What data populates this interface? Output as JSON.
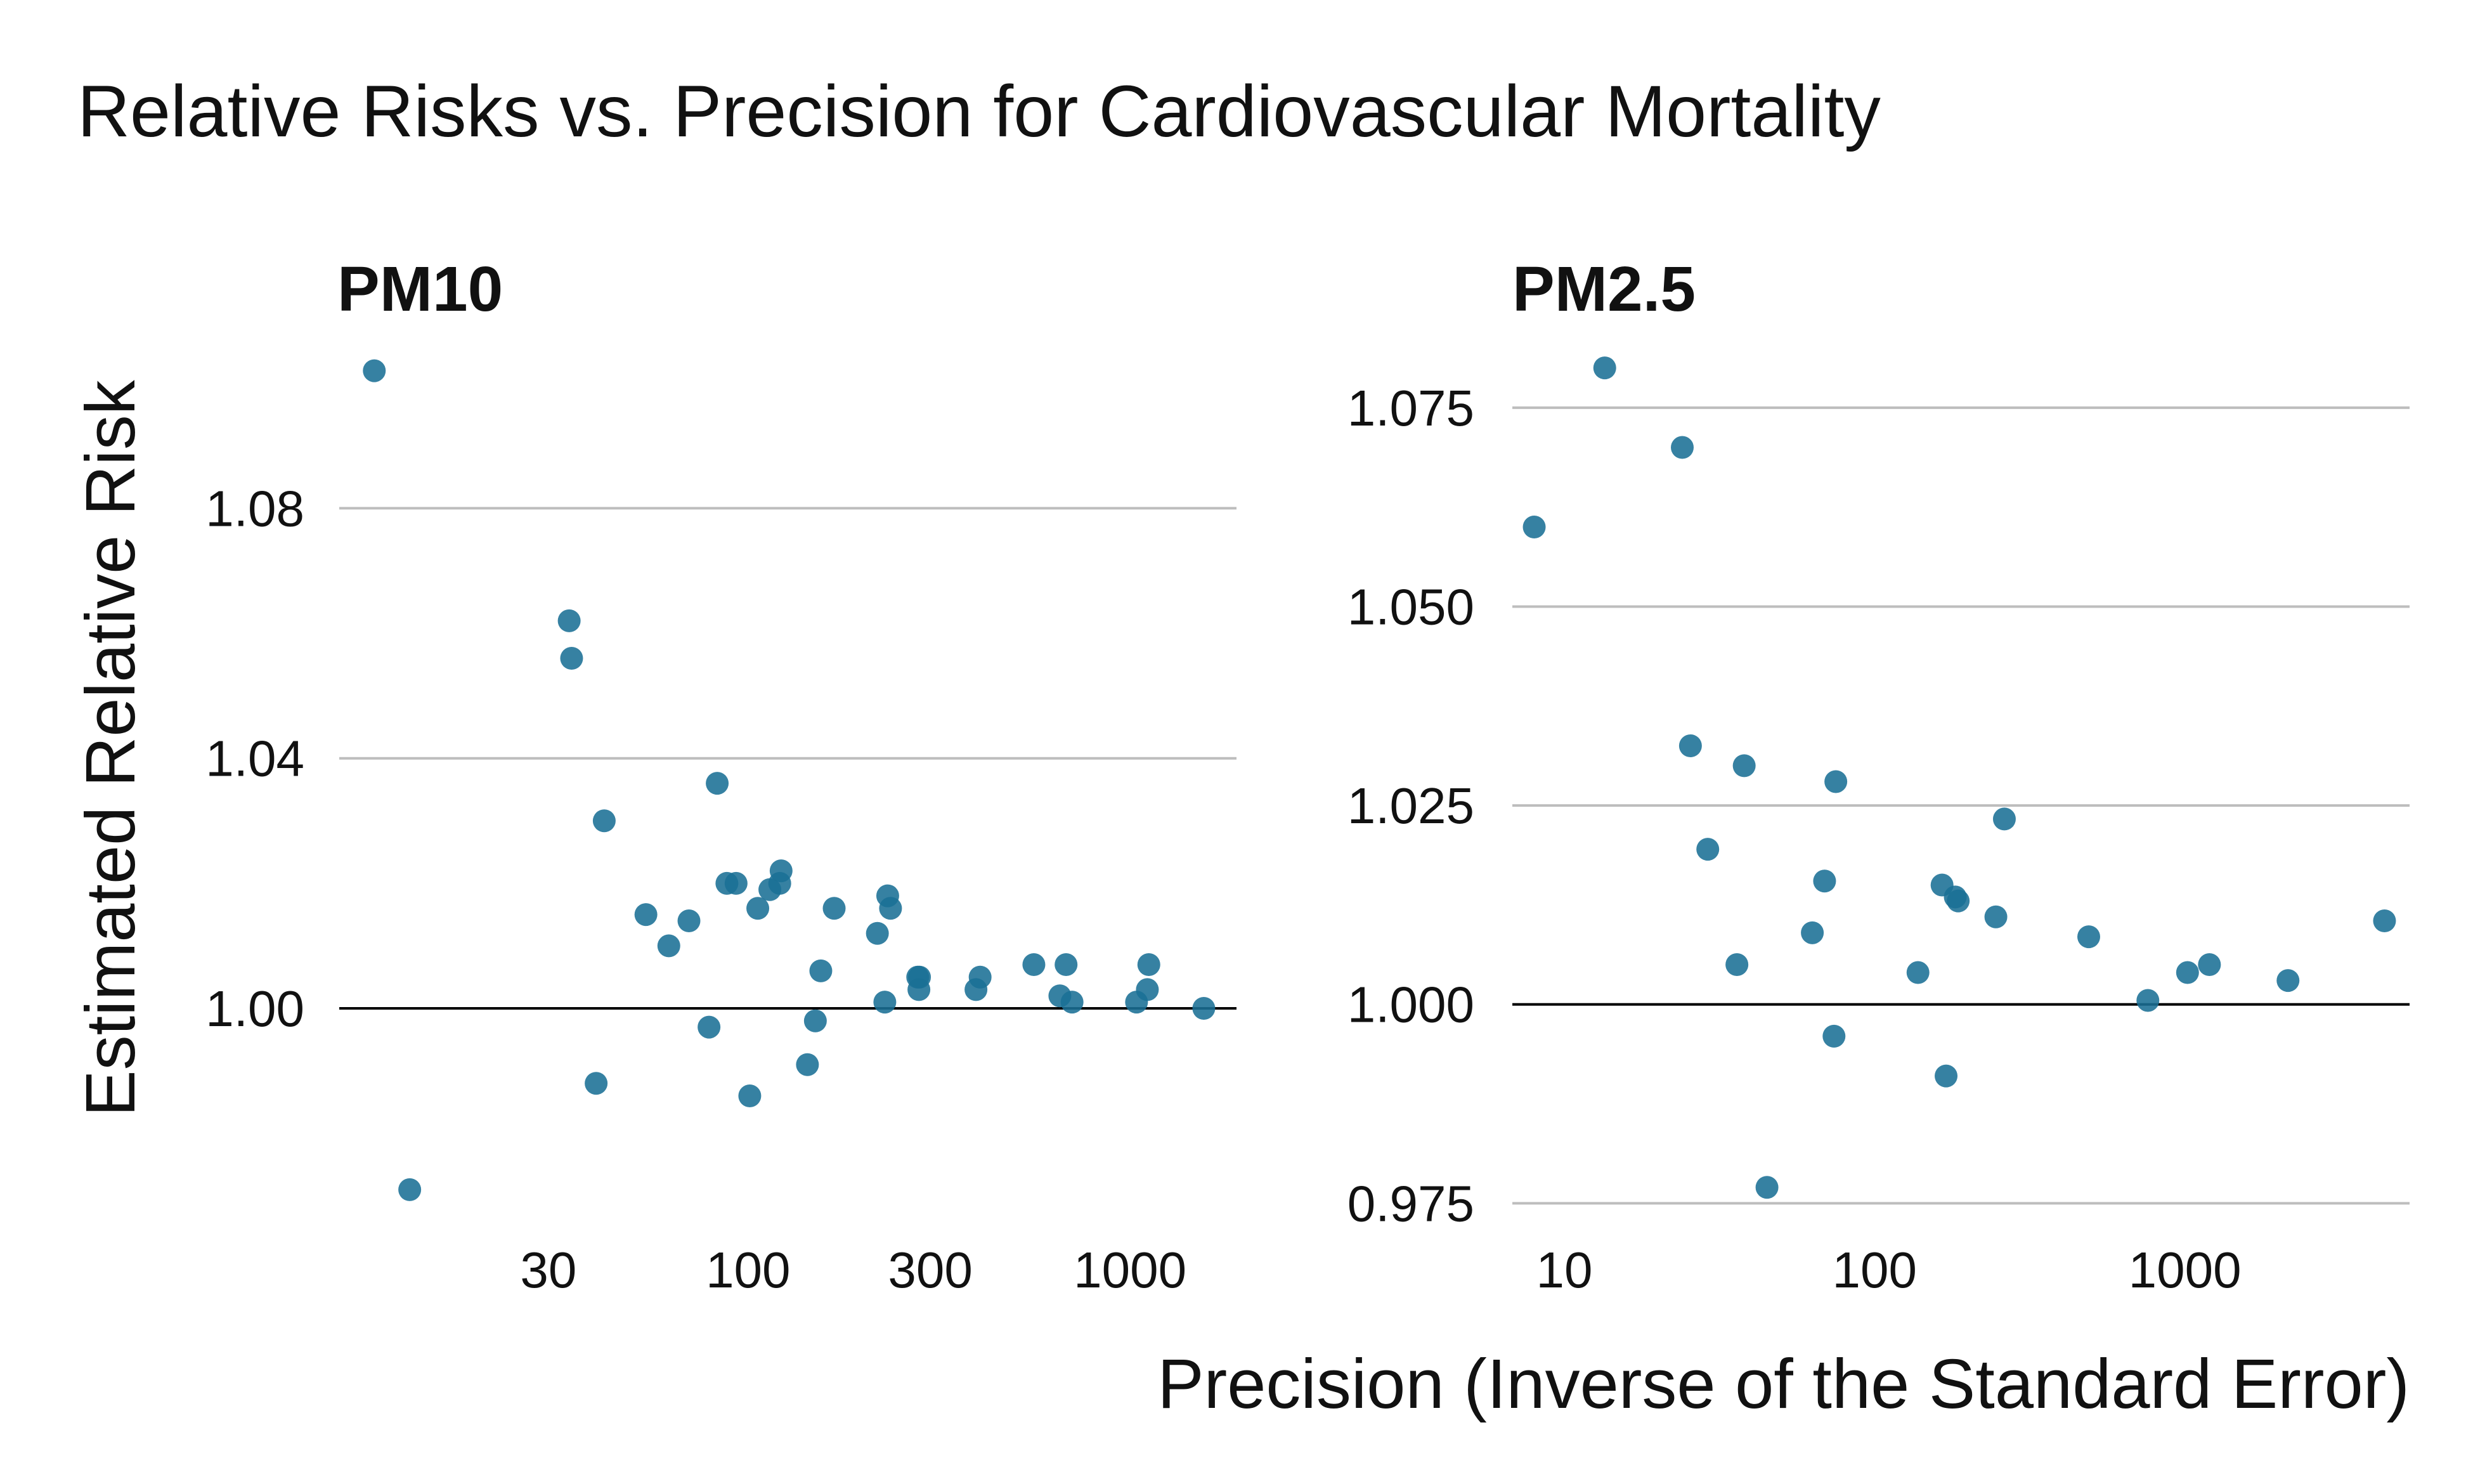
{
  "title": "Relative Risks vs. Precision for Cardiovascular Mortality",
  "xlabel": "Precision (Inverse of the Standard Error)",
  "ylabel": "Estimated Relative Risk",
  "point_color": "#1a6f95",
  "chart_data": [
    {
      "type": "scatter",
      "title": "PM10",
      "x_scale": "log",
      "xlim": [
        8.5,
        1900
      ],
      "ylim": [
        0.965,
        1.105
      ],
      "xticks": [
        30,
        100,
        300,
        1000
      ],
      "xtick_labels": [
        "30",
        "100",
        "300",
        "1000"
      ],
      "yticks": [
        1.0,
        1.04,
        1.08
      ],
      "ytick_labels": [
        "1.00",
        "1.04",
        "1.08"
      ],
      "reference_line_y": 1.0,
      "points": [
        {
          "x": 10.5,
          "y": 1.102
        },
        {
          "x": 13,
          "y": 0.971
        },
        {
          "x": 34,
          "y": 1.062
        },
        {
          "x": 34.5,
          "y": 1.056
        },
        {
          "x": 40,
          "y": 0.988
        },
        {
          "x": 42,
          "y": 1.03
        },
        {
          "x": 54,
          "y": 1.015
        },
        {
          "x": 62,
          "y": 1.01
        },
        {
          "x": 70,
          "y": 1.014
        },
        {
          "x": 79,
          "y": 0.997
        },
        {
          "x": 83,
          "y": 1.036
        },
        {
          "x": 88,
          "y": 1.02
        },
        {
          "x": 93,
          "y": 1.02
        },
        {
          "x": 101,
          "y": 0.986
        },
        {
          "x": 106,
          "y": 1.016
        },
        {
          "x": 114,
          "y": 1.019
        },
        {
          "x": 121,
          "y": 1.02
        },
        {
          "x": 122,
          "y": 1.022
        },
        {
          "x": 143,
          "y": 0.991
        },
        {
          "x": 150,
          "y": 0.998
        },
        {
          "x": 155,
          "y": 1.006
        },
        {
          "x": 168,
          "y": 1.016
        },
        {
          "x": 218,
          "y": 1.012
        },
        {
          "x": 228,
          "y": 1.001
        },
        {
          "x": 232,
          "y": 1.018
        },
        {
          "x": 236,
          "y": 1.016
        },
        {
          "x": 278,
          "y": 1.005
        },
        {
          "x": 280,
          "y": 1.003
        },
        {
          "x": 281,
          "y": 1.005
        },
        {
          "x": 395,
          "y": 1.003
        },
        {
          "x": 405,
          "y": 1.005
        },
        {
          "x": 560,
          "y": 1.007
        },
        {
          "x": 655,
          "y": 1.002
        },
        {
          "x": 680,
          "y": 1.007
        },
        {
          "x": 705,
          "y": 1.001
        },
        {
          "x": 1040,
          "y": 1.001
        },
        {
          "x": 1110,
          "y": 1.003
        },
        {
          "x": 1120,
          "y": 1.007
        },
        {
          "x": 1560,
          "y": 1.0
        }
      ]
    },
    {
      "type": "scatter",
      "title": "PM2.5",
      "x_scale": "log",
      "xlim": [
        6.8,
        5300
      ],
      "ylim": [
        0.972,
        1.082
      ],
      "xticks": [
        10,
        100,
        1000
      ],
      "xtick_labels": [
        "10",
        "100",
        "1000"
      ],
      "yticks": [
        0.975,
        1.0,
        1.025,
        1.05,
        1.075
      ],
      "ytick_labels": [
        "0.975",
        "1.000",
        "1.025",
        "1.050",
        "1.075"
      ],
      "reference_line_y": 1.0,
      "points": [
        {
          "x": 8,
          "y": 1.06
        },
        {
          "x": 13.5,
          "y": 1.08
        },
        {
          "x": 24,
          "y": 1.07
        },
        {
          "x": 25.5,
          "y": 1.0325
        },
        {
          "x": 29,
          "y": 1.0195
        },
        {
          "x": 36,
          "y": 1.005
        },
        {
          "x": 38,
          "y": 1.03
        },
        {
          "x": 45,
          "y": 0.977
        },
        {
          "x": 63,
          "y": 1.009
        },
        {
          "x": 69,
          "y": 1.0155
        },
        {
          "x": 74,
          "y": 0.996
        },
        {
          "x": 75,
          "y": 1.028
        },
        {
          "x": 138,
          "y": 1.004
        },
        {
          "x": 165,
          "y": 1.015
        },
        {
          "x": 170,
          "y": 0.991
        },
        {
          "x": 182,
          "y": 1.0135
        },
        {
          "x": 186,
          "y": 1.013
        },
        {
          "x": 246,
          "y": 1.011
        },
        {
          "x": 262,
          "y": 1.0233
        },
        {
          "x": 490,
          "y": 1.0085
        },
        {
          "x": 760,
          "y": 1.0005
        },
        {
          "x": 1020,
          "y": 1.004
        },
        {
          "x": 1200,
          "y": 1.005
        },
        {
          "x": 2150,
          "y": 1.003
        },
        {
          "x": 4400,
          "y": 1.0105
        }
      ]
    }
  ]
}
